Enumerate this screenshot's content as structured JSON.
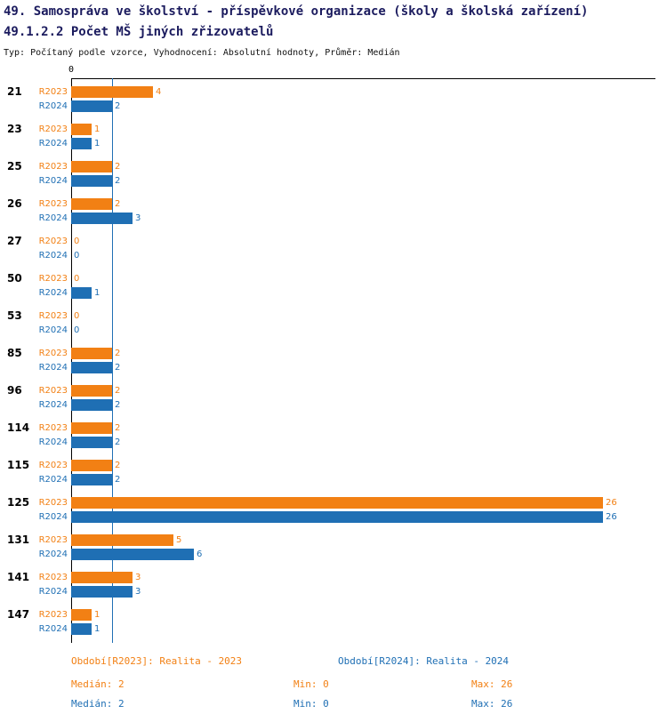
{
  "header": {
    "title_line1": "49. Samospráva ve školství - příspěvkové organizace (školy a školská zařízení)",
    "title_line2": "49.1.2.2 Počet MŠ jiných zřizovatelů",
    "subtitle": "Typ: Počítaný podle vzorce, Vyhodnocení: Absolutní hodnoty, Průměr: Medián"
  },
  "colors": {
    "orange": "#F28014",
    "blue": "#1F6FB4",
    "title_navy": "#1B1B5E",
    "axis_black": "#000000"
  },
  "chart_data": {
    "type": "bar",
    "orientation": "horizontal",
    "title": "49.1.2.2 Počet MŠ jiných zřizovatelů",
    "categories": [
      "21",
      "23",
      "25",
      "26",
      "27",
      "50",
      "53",
      "85",
      "96",
      "114",
      "115",
      "125",
      "131",
      "141",
      "147"
    ],
    "series": [
      {
        "name": "R2023",
        "legend": "Období[R2023]: Realita - 2023",
        "color": "#F28014",
        "values": [
          4,
          1,
          2,
          2,
          0,
          0,
          0,
          2,
          2,
          2,
          2,
          26,
          5,
          3,
          1
        ],
        "median": 2,
        "min": 0,
        "max": 26
      },
      {
        "name": "R2024",
        "legend": "Období[R2024]: Realita - 2024",
        "color": "#1F6FB4",
        "values": [
          2,
          1,
          2,
          3,
          0,
          1,
          0,
          2,
          2,
          2,
          2,
          26,
          6,
          3,
          1
        ],
        "median": 2,
        "min": 0,
        "max": 26
      }
    ],
    "xlim": [
      0,
      28
    ],
    "x_axis_zero_label": "0",
    "median_line_value": 2,
    "grid": false,
    "legend_position": "bottom"
  },
  "footer": {
    "stats": [
      {
        "median_label": "Medián: 2",
        "min_label": "Min: 0",
        "max_label": "Max: 26"
      },
      {
        "median_label": "Medián: 2",
        "min_label": "Min: 0",
        "max_label": "Max: 26"
      }
    ]
  }
}
